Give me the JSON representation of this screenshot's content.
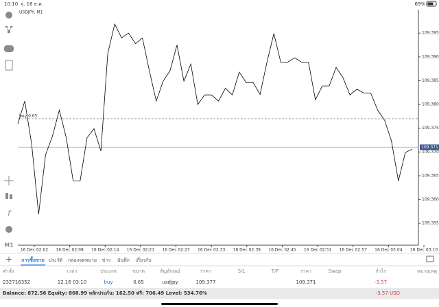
{
  "status_bar": {
    "time": "10:10",
    "date": "จ. 16 ธ.ค.",
    "battery": "69%"
  },
  "toolbar": {
    "timeframe": "M1"
  },
  "chart_data": {
    "type": "line",
    "title": "USDJPY, M1",
    "color": "#000000",
    "values": [
      109.3759,
      109.3807,
      109.3716,
      109.3569,
      109.3694,
      109.3733,
      109.3788,
      109.373,
      109.3639,
      109.3639,
      109.373,
      109.3749,
      109.3702,
      109.3907,
      109.3969,
      109.394,
      109.395,
      109.3928,
      109.394,
      109.3871,
      109.3807,
      109.3849,
      109.3871,
      109.3925,
      109.3849,
      109.3885,
      109.38,
      109.382,
      109.382,
      109.3807,
      109.3834,
      109.382,
      109.3868,
      109.3846,
      109.3846,
      109.3821,
      109.3889,
      109.3949,
      109.3889,
      109.3889,
      109.3898,
      109.3889,
      109.3889,
      109.381,
      109.3839,
      109.3839,
      109.3878,
      109.3856,
      109.382,
      109.3832,
      109.3824,
      109.3824,
      109.3788,
      109.3767,
      109.3723,
      109.3639,
      109.3699,
      109.3706
    ],
    "x_labels": [
      "16 Dec 02:02",
      "16 Dec 02:08",
      "16 Dec 02:14",
      "16 Dec 02:21",
      "16 Dec 02:27",
      "16 Dec 02:33",
      "16 Dec 02:39",
      "16 Dec 02:45",
      "16 Dec 02:51",
      "16 Dec 02:57",
      "16 Dec 03:04",
      "16 Dec 03:10"
    ],
    "ylim": [
      109.3504,
      109.3998
    ],
    "yticks": [
      109.355,
      {
        "value": 109.36,
        "label": "109.360"
      },
      109.365,
      {
        "value": 109.37,
        "label": "109.370"
      },
      109.375,
      {
        "value": 109.38,
        "label": "109.380"
      },
      109.385,
      {
        "value": 109.39,
        "label": "109.390"
      },
      109.395
    ],
    "order_line": {
      "label": "buy 0.65",
      "value": 109.377
    },
    "current_price": {
      "value": 109.371,
      "label": "109.371"
    }
  },
  "tabs": [
    "การซื้อขาย",
    "ประวัติ",
    "กล่องจดหมาย",
    "ข่าว",
    "บันทึก",
    "เกี่ยวกับ"
  ],
  "table": {
    "columns": [
      "คำสั่ง",
      "เวลา",
      "ประเภท",
      "ขนาด",
      "สัญลักษณ์",
      "ราคา",
      "S/L",
      "T/P",
      "ราคา",
      "Swap",
      "กำไร",
      "หมายเหตุ"
    ],
    "rows": [
      {
        "order": "232716352",
        "time": "12.16 03:10",
        "type": "buy",
        "volume": "0.65",
        "symbol": "usdjpy",
        "price": "109.377",
        "current_price": "109.371",
        "profit": "-3.57"
      }
    ]
  },
  "footer": {
    "summary": "Balance: 872.56 Equity: 868.99 หลักประกัน: 162.50 ฟรี: 706.49 Level: 534.76%",
    "total": "-3.57 USD"
  }
}
